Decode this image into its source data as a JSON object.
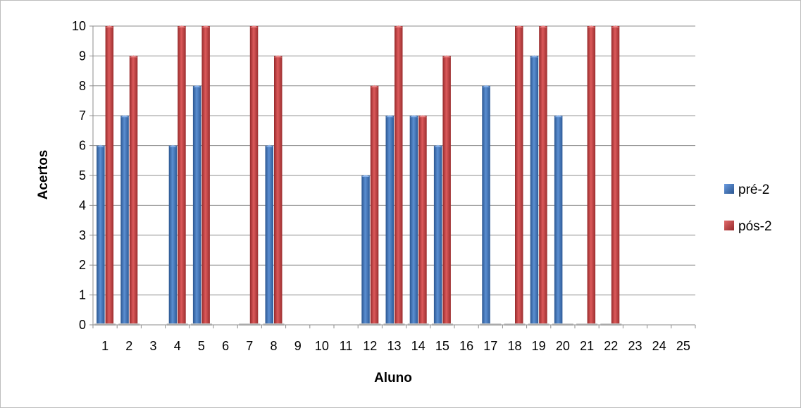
{
  "chart_data": {
    "type": "bar",
    "title": "",
    "xlabel": "Aluno",
    "ylabel": "Acertos",
    "ylim": [
      0,
      10
    ],
    "yticks": [
      "0",
      "1",
      "2",
      "3",
      "4",
      "5",
      "6",
      "7",
      "8",
      "9",
      "10"
    ],
    "grid": true,
    "legend": "right",
    "categories": [
      "1",
      "2",
      "3",
      "4",
      "5",
      "6",
      "7",
      "8",
      "9",
      "10",
      "11",
      "12",
      "13",
      "14",
      "15",
      "16",
      "17",
      "18",
      "19",
      "20",
      "21",
      "22",
      "23",
      "24",
      "25"
    ],
    "series": [
      {
        "name": "pré-2",
        "color": "#3a6fb5",
        "values": [
          6,
          7,
          null,
          6,
          8,
          null,
          null,
          6,
          null,
          null,
          null,
          5,
          7,
          7,
          6,
          null,
          8,
          null,
          9,
          7,
          null,
          null,
          null,
          null,
          null
        ]
      },
      {
        "name": "pós-2",
        "color": "#c0393a",
        "values": [
          10,
          9,
          null,
          10,
          10,
          null,
          10,
          9,
          null,
          null,
          null,
          8,
          10,
          7,
          9,
          null,
          null,
          10,
          10,
          null,
          10,
          10,
          null,
          null,
          null
        ]
      }
    ]
  }
}
